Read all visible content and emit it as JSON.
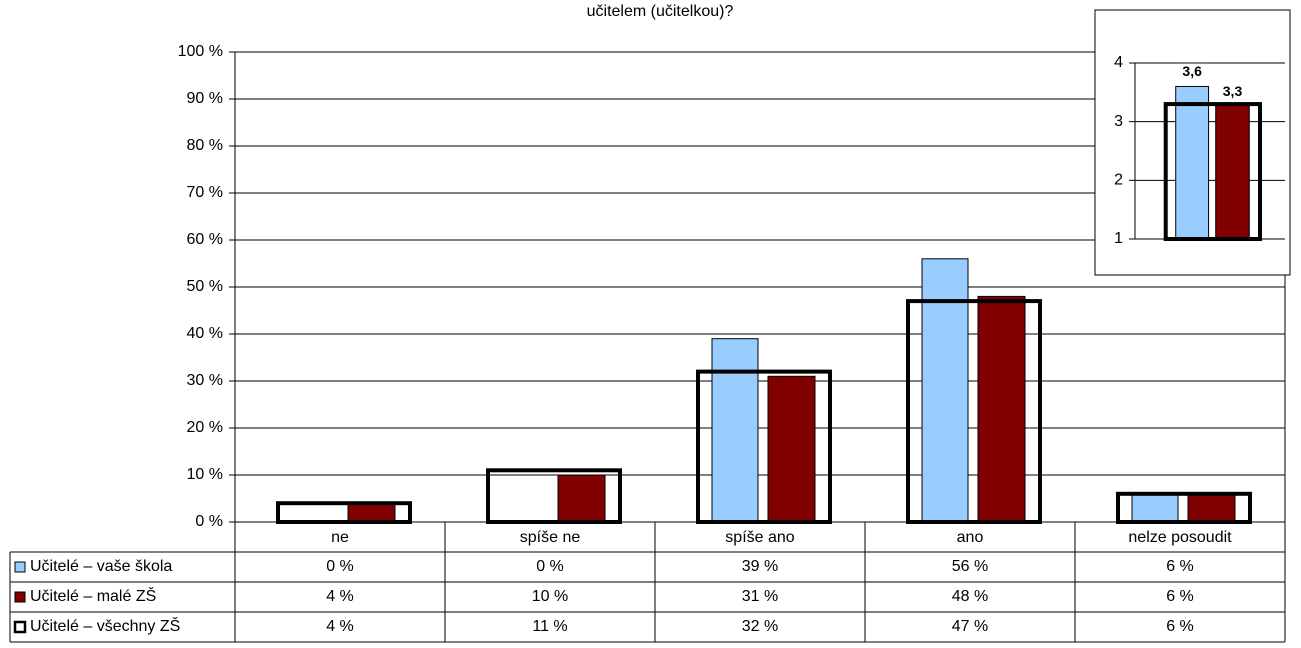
{
  "chart_data": [
    {
      "type": "bar",
      "title": "učitelem (učitelkou)?",
      "categories": [
        "ne",
        "spíše ne",
        "spíše ano",
        "ano",
        "nelze posoudit"
      ],
      "series": [
        {
          "name": "Učitelé – vaše škola",
          "color": "#99ccff",
          "values": [
            0,
            0,
            39,
            56,
            6
          ],
          "value_labels": [
            "0 %",
            "0 %",
            "39 %",
            "56 %",
            "6 %"
          ]
        },
        {
          "name": "Učitelé – malé ZŠ",
          "color": "#800000",
          "values": [
            4,
            10,
            31,
            48,
            6
          ],
          "value_labels": [
            "4 %",
            "10 %",
            "31 %",
            "48 %",
            "6 %"
          ]
        },
        {
          "name": "Učitelé – všechny ZŠ",
          "color": "#000000",
          "outline": true,
          "values": [
            4,
            11,
            32,
            47,
            6
          ],
          "value_labels": [
            "4 %",
            "11 %",
            "32 %",
            "47 %",
            "6 %"
          ]
        }
      ],
      "ylim": [
        0,
        100
      ],
      "yticks": [
        {
          "value": 0,
          "label": "0 %"
        },
        {
          "value": 10,
          "label": "10 %"
        },
        {
          "value": 20,
          "label": "20 %"
        },
        {
          "value": 30,
          "label": "30 %"
        },
        {
          "value": 40,
          "label": "40 %"
        },
        {
          "value": 50,
          "label": "50 %"
        },
        {
          "value": 60,
          "label": "60 %"
        },
        {
          "value": 70,
          "label": "70 %"
        },
        {
          "value": 80,
          "label": "80 %"
        },
        {
          "value": 90,
          "label": "90 %"
        },
        {
          "value": 100,
          "label": "100 %"
        }
      ],
      "grid": true
    },
    {
      "type": "bar",
      "categories": [
        null
      ],
      "series": [
        {
          "color": "#99ccff",
          "values": [
            3.6
          ],
          "value_labels": [
            "3,6"
          ]
        },
        {
          "color": "#800000",
          "values": [
            3.3
          ],
          "value_labels": [
            "3,3"
          ]
        },
        {
          "color": "#000000",
          "outline": true,
          "values": [
            3.3
          ]
        }
      ],
      "ylim": [
        1,
        4
      ],
      "yticks": [
        1,
        2,
        3,
        4
      ],
      "grid": true
    }
  ]
}
